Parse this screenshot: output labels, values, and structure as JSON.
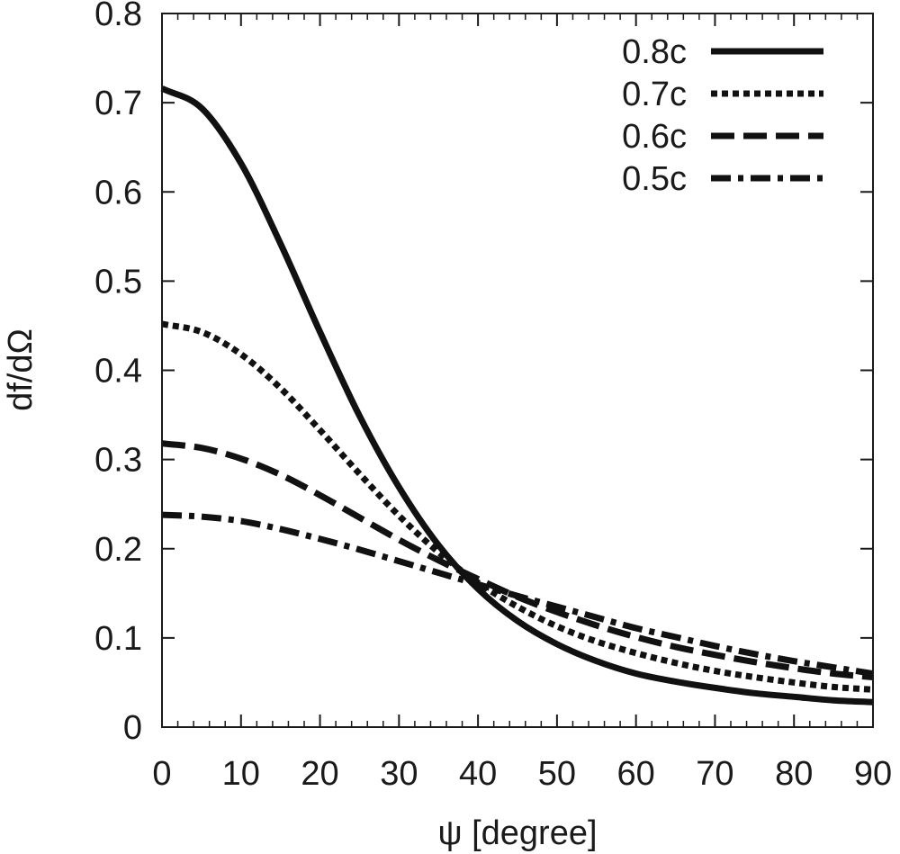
{
  "chart_data": {
    "type": "line",
    "xlabel": "ψ [degree]",
    "ylabel": "df/dΩ",
    "xlim": [
      0,
      90
    ],
    "ylim": [
      0,
      0.8
    ],
    "xticks": [
      0,
      10,
      20,
      30,
      40,
      50,
      60,
      70,
      80,
      90
    ],
    "yticks": [
      0,
      0.1,
      0.2,
      0.3,
      0.4,
      0.5,
      0.6,
      0.7,
      0.8
    ],
    "xtick_labels": [
      "0",
      "10",
      "20",
      "30",
      "40",
      "50",
      "60",
      "70",
      "80",
      "90"
    ],
    "ytick_labels": [
      "0",
      "0.1",
      "0.2",
      "0.3",
      "0.4",
      "0.5",
      "0.6",
      "0.7",
      "0.8"
    ],
    "grid": false,
    "legend_position": "top-right",
    "x": [
      0,
      5,
      10,
      15,
      20,
      25,
      30,
      35,
      40,
      45,
      50,
      55,
      60,
      65,
      70,
      75,
      80,
      85,
      90
    ],
    "series": [
      {
        "name": "0.8c",
        "style": "solid",
        "values": [
          0.716,
          0.694,
          0.632,
          0.542,
          0.443,
          0.349,
          0.269,
          0.204,
          0.155,
          0.119,
          0.093,
          0.074,
          0.06,
          0.051,
          0.044,
          0.038,
          0.034,
          0.03,
          0.028
        ]
      },
      {
        "name": "0.7c",
        "style": "dotted",
        "values": [
          0.452,
          0.443,
          0.418,
          0.38,
          0.333,
          0.284,
          0.237,
          0.196,
          0.162,
          0.135,
          0.113,
          0.096,
          0.083,
          0.072,
          0.063,
          0.056,
          0.05,
          0.045,
          0.042
        ]
      },
      {
        "name": "0.6c",
        "style": "dashed",
        "values": [
          0.318,
          0.313,
          0.301,
          0.283,
          0.26,
          0.235,
          0.21,
          0.187,
          0.166,
          0.146,
          0.129,
          0.114,
          0.101,
          0.09,
          0.081,
          0.073,
          0.066,
          0.06,
          0.056
        ]
      },
      {
        "name": "0.5c",
        "style": "dashdot",
        "values": [
          0.238,
          0.236,
          0.231,
          0.222,
          0.211,
          0.199,
          0.186,
          0.173,
          0.16,
          0.147,
          0.135,
          0.123,
          0.111,
          0.101,
          0.091,
          0.082,
          0.074,
          0.067,
          0.06
        ]
      }
    ]
  }
}
